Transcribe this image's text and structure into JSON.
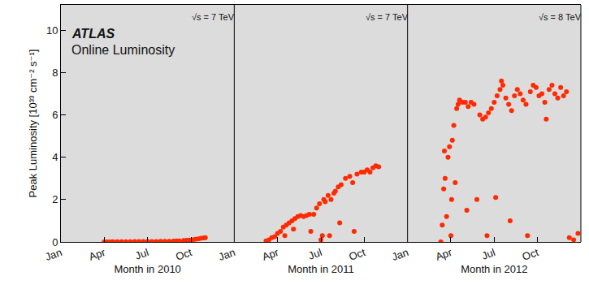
{
  "chart_data": [
    {
      "type": "scatter",
      "title": "ATLAS",
      "subtitle": "Online Luminosity",
      "x_label": "Month in 2010",
      "y_label": "Peak Luminosity [10³³ cm⁻² s⁻¹]",
      "annotations": [
        "√s = 7 TeV"
      ],
      "color": "#ff2a00",
      "marker": "circle",
      "xlim": [
        1,
        13
      ],
      "xticks": [
        {
          "value": 1,
          "label": "Jan"
        },
        {
          "value": 4,
          "label": "Apr"
        },
        {
          "value": 7,
          "label": "Jul"
        },
        {
          "value": 10,
          "label": "Oct"
        }
      ],
      "ylim": [
        0,
        11.2
      ],
      "yticks": [
        0,
        2,
        4,
        6,
        8,
        10
      ],
      "x": [
        4.0,
        4.2,
        4.4,
        4.6,
        4.9,
        5.2,
        5.5,
        5.8,
        6.1,
        6.4,
        6.7,
        7.0,
        7.3,
        7.6,
        7.9,
        8.2,
        8.5,
        8.8,
        9.0,
        9.2,
        9.5,
        9.7,
        9.9,
        10.1,
        10.3,
        10.5,
        10.7,
        10.9,
        11.0
      ],
      "values": [
        0.0,
        0.0,
        0.0,
        0.01,
        0.01,
        0.01,
        0.01,
        0.01,
        0.02,
        0.02,
        0.02,
        0.02,
        0.02,
        0.02,
        0.03,
        0.03,
        0.03,
        0.04,
        0.05,
        0.05,
        0.07,
        0.08,
        0.09,
        0.1,
        0.12,
        0.14,
        0.17,
        0.19,
        0.2
      ]
    },
    {
      "type": "scatter",
      "x_label": "Month in 2011",
      "annotations": [
        "√s = 7 TeV"
      ],
      "color": "#ff2a00",
      "marker": "circle",
      "xlim": [
        1,
        13
      ],
      "xticks": [
        {
          "value": 1,
          "label": "Jan"
        },
        {
          "value": 4,
          "label": "Apr"
        },
        {
          "value": 7,
          "label": "Jul"
        },
        {
          "value": 10,
          "label": "Oct"
        }
      ],
      "ylim": [
        0,
        11.2
      ],
      "yticks": [
        0,
        2,
        4,
        6,
        8,
        10
      ],
      "x": [
        3.2,
        3.4,
        3.6,
        3.8,
        4.0,
        4.2,
        4.4,
        4.5,
        4.6,
        4.8,
        5.0,
        5.1,
        5.2,
        5.4,
        5.6,
        5.8,
        6.0,
        6.2,
        6.3,
        6.5,
        6.7,
        6.9,
        7.0,
        7.1,
        7.2,
        7.3,
        7.5,
        7.6,
        7.7,
        7.9,
        8.0,
        8.2,
        8.3,
        8.4,
        8.7,
        9.0,
        9.2,
        9.3,
        9.5,
        9.8,
        10.0,
        10.2,
        10.4,
        10.6,
        10.8,
        11.0
      ],
      "values": [
        0.05,
        0.1,
        0.2,
        0.25,
        0.4,
        0.5,
        0.7,
        0.3,
        0.8,
        0.9,
        1.0,
        0.6,
        1.1,
        1.2,
        1.25,
        1.2,
        1.25,
        1.3,
        0.5,
        1.3,
        1.6,
        1.8,
        0.1,
        0.3,
        2.0,
        1.9,
        2.2,
        0.3,
        2.0,
        2.3,
        2.4,
        2.6,
        0.9,
        2.7,
        3.0,
        3.1,
        2.8,
        0.5,
        3.2,
        3.3,
        3.3,
        3.4,
        3.3,
        3.5,
        3.6,
        3.55
      ]
    },
    {
      "type": "scatter",
      "x_label": "Month in 2012",
      "annotations": [
        "√s = 8 TeV"
      ],
      "color": "#ff2a00",
      "marker": "circle",
      "xlim": [
        1,
        13
      ],
      "xticks": [
        {
          "value": 1,
          "label": "Jan"
        },
        {
          "value": 4,
          "label": "Apr"
        },
        {
          "value": 7,
          "label": "Jul"
        },
        {
          "value": 10,
          "label": "Oct"
        }
      ],
      "ylim": [
        0,
        11.2
      ],
      "yticks": [
        0,
        2,
        4,
        6,
        8,
        10
      ],
      "x": [
        3.3,
        3.4,
        3.5,
        3.55,
        3.6,
        3.7,
        3.8,
        3.9,
        4.0,
        4.05,
        4.1,
        4.2,
        4.3,
        4.4,
        4.5,
        4.6,
        4.8,
        5.0,
        5.1,
        5.2,
        5.4,
        5.6,
        5.8,
        6.0,
        6.2,
        6.4,
        6.5,
        6.6,
        6.8,
        7.0,
        7.1,
        7.2,
        7.4,
        7.5,
        7.6,
        7.8,
        8.0,
        8.1,
        8.2,
        8.4,
        8.6,
        8.8,
        9.0,
        9.2,
        9.3,
        9.5,
        9.7,
        9.9,
        10.1,
        10.3,
        10.5,
        10.6,
        10.8,
        11.0,
        11.2,
        11.4,
        11.6,
        11.8,
        12.0,
        12.2,
        12.5,
        12.8
      ],
      "values": [
        0.0,
        0.8,
        2.5,
        4.3,
        3.0,
        1.2,
        4.0,
        4.5,
        0.3,
        2.0,
        4.8,
        5.5,
        2.8,
        6.3,
        6.5,
        6.7,
        6.6,
        6.6,
        1.5,
        6.4,
        6.6,
        6.5,
        2.0,
        6.0,
        5.8,
        5.9,
        0.3,
        6.1,
        6.3,
        6.6,
        2.1,
        6.9,
        7.2,
        7.6,
        7.4,
        6.8,
        6.5,
        1.0,
        6.2,
        6.9,
        7.2,
        7.0,
        6.7,
        6.5,
        0.3,
        7.1,
        7.4,
        7.3,
        6.9,
        7.0,
        6.6,
        5.8,
        7.2,
        7.4,
        7.0,
        6.8,
        7.3,
        6.9,
        7.1,
        0.2,
        0.1,
        0.4
      ]
    }
  ]
}
